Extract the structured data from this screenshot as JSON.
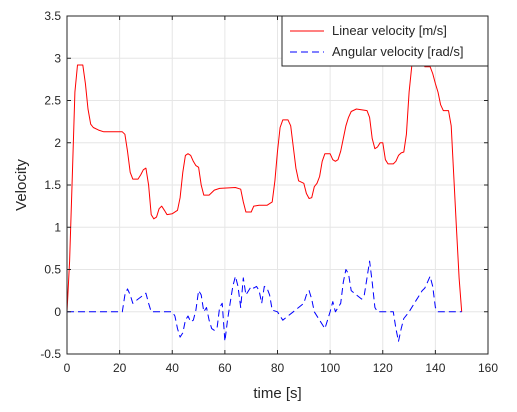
{
  "chart_data": {
    "type": "line",
    "xlabel": "time [s]",
    "ylabel": "Velocity",
    "xlim": [
      0,
      160
    ],
    "ylim": [
      -0.5,
      3.5
    ],
    "x_ticks": [
      "0",
      "20",
      "40",
      "60",
      "80",
      "100",
      "120",
      "140",
      "160"
    ],
    "y_ticks": [
      "-0.5",
      "0",
      "0.5",
      "1",
      "1.5",
      "2",
      "2.5",
      "3",
      "3.5"
    ],
    "grid": true,
    "legend_position": "top-right",
    "series": [
      {
        "name": "Linear velocity [m/s]",
        "color": "#ff0000",
        "line_style": "solid",
        "points": [
          [
            0,
            0
          ],
          [
            1,
            0.6
          ],
          [
            2,
            1.6
          ],
          [
            3,
            2.6
          ],
          [
            4,
            2.92
          ],
          [
            6,
            2.92
          ],
          [
            7,
            2.7
          ],
          [
            8,
            2.4
          ],
          [
            9,
            2.22
          ],
          [
            10,
            2.18
          ],
          [
            12,
            2.15
          ],
          [
            14,
            2.13
          ],
          [
            16,
            2.13
          ],
          [
            18,
            2.13
          ],
          [
            21,
            2.13
          ],
          [
            22,
            2.1
          ],
          [
            23,
            1.9
          ],
          [
            24,
            1.65
          ],
          [
            25,
            1.57
          ],
          [
            27,
            1.57
          ],
          [
            28,
            1.62
          ],
          [
            29,
            1.68
          ],
          [
            30,
            1.7
          ],
          [
            31,
            1.5
          ],
          [
            32,
            1.15
          ],
          [
            33,
            1.1
          ],
          [
            34,
            1.12
          ],
          [
            35,
            1.22
          ],
          [
            36,
            1.25
          ],
          [
            37,
            1.2
          ],
          [
            38,
            1.15
          ],
          [
            40,
            1.16
          ],
          [
            42,
            1.2
          ],
          [
            43,
            1.35
          ],
          [
            44,
            1.65
          ],
          [
            45,
            1.85
          ],
          [
            46,
            1.87
          ],
          [
            47,
            1.85
          ],
          [
            48,
            1.78
          ],
          [
            49,
            1.73
          ],
          [
            50,
            1.71
          ],
          [
            51,
            1.5
          ],
          [
            52,
            1.38
          ],
          [
            54,
            1.38
          ],
          [
            56,
            1.44
          ],
          [
            58,
            1.46
          ],
          [
            64,
            1.47
          ],
          [
            66,
            1.45
          ],
          [
            67,
            1.3
          ],
          [
            68,
            1.18
          ],
          [
            70,
            1.18
          ],
          [
            71,
            1.25
          ],
          [
            73,
            1.26
          ],
          [
            76,
            1.26
          ],
          [
            78,
            1.3
          ],
          [
            79,
            1.55
          ],
          [
            80,
            1.9
          ],
          [
            81,
            2.18
          ],
          [
            82,
            2.27
          ],
          [
            84,
            2.27
          ],
          [
            85,
            2.2
          ],
          [
            86,
            1.95
          ],
          [
            87,
            1.7
          ],
          [
            88,
            1.55
          ],
          [
            90,
            1.52
          ],
          [
            91,
            1.4
          ],
          [
            92,
            1.34
          ],
          [
            93,
            1.35
          ],
          [
            94,
            1.48
          ],
          [
            95,
            1.52
          ],
          [
            96,
            1.6
          ],
          [
            97,
            1.78
          ],
          [
            98,
            1.87
          ],
          [
            100,
            1.87
          ],
          [
            101,
            1.8
          ],
          [
            102,
            1.78
          ],
          [
            103,
            1.8
          ],
          [
            104,
            1.9
          ],
          [
            105,
            2.05
          ],
          [
            106,
            2.2
          ],
          [
            107,
            2.3
          ],
          [
            108,
            2.37
          ],
          [
            110,
            2.4
          ],
          [
            114,
            2.38
          ],
          [
            115,
            2.3
          ],
          [
            116,
            2.05
          ],
          [
            117,
            1.93
          ],
          [
            118,
            1.95
          ],
          [
            119,
            2.0
          ],
          [
            120,
            2.0
          ],
          [
            121,
            1.8
          ],
          [
            122,
            1.75
          ],
          [
            124,
            1.75
          ],
          [
            125,
            1.78
          ],
          [
            126,
            1.85
          ],
          [
            127,
            1.88
          ],
          [
            128,
            1.89
          ],
          [
            129,
            2.1
          ],
          [
            130,
            2.6
          ],
          [
            131,
            2.9
          ],
          [
            132,
            3.15
          ],
          [
            133,
            3.18
          ],
          [
            134,
            3.1
          ],
          [
            135,
            3.02
          ],
          [
            136,
            2.9
          ],
          [
            137,
            2.9
          ],
          [
            138,
            2.9
          ],
          [
            139,
            2.82
          ],
          [
            140,
            2.7
          ],
          [
            141,
            2.6
          ],
          [
            142,
            2.45
          ],
          [
            143,
            2.38
          ],
          [
            145,
            2.38
          ],
          [
            146,
            2.2
          ],
          [
            147,
            1.6
          ],
          [
            148,
            1.0
          ],
          [
            149,
            0.4
          ],
          [
            150,
            0.0
          ]
        ]
      },
      {
        "name": "Angular velocity [rad/s]",
        "color": "#0000ff",
        "line_style": "dashed",
        "points": [
          [
            0,
            0
          ],
          [
            5,
            0
          ],
          [
            10,
            0
          ],
          [
            15,
            0
          ],
          [
            21,
            0
          ],
          [
            22,
            0.2
          ],
          [
            23,
            0.27
          ],
          [
            24,
            0.2
          ],
          [
            25,
            0.1
          ],
          [
            27,
            0.15
          ],
          [
            30,
            0.22
          ],
          [
            31,
            0.1
          ],
          [
            32,
            0
          ],
          [
            35,
            0
          ],
          [
            40,
            0
          ],
          [
            41,
            -0.05
          ],
          [
            42,
            -0.2
          ],
          [
            43,
            -0.3
          ],
          [
            44,
            -0.25
          ],
          [
            45,
            -0.1
          ],
          [
            46,
            -0.05
          ],
          [
            47,
            -0.12
          ],
          [
            48,
            -0.1
          ],
          [
            49,
            0.02
          ],
          [
            50,
            0.25
          ],
          [
            51,
            0.2
          ],
          [
            52,
            0
          ],
          [
            53,
            0.05
          ],
          [
            54,
            -0.1
          ],
          [
            55,
            -0.2
          ],
          [
            56,
            -0.22
          ],
          [
            57,
            -0.2
          ],
          [
            58,
            0.05
          ],
          [
            59,
            0.1
          ],
          [
            60,
            -0.35
          ],
          [
            61,
            -0.1
          ],
          [
            62,
            0.1
          ],
          [
            63,
            0.3
          ],
          [
            64,
            0.42
          ],
          [
            65,
            0.3
          ],
          [
            66,
            0.05
          ],
          [
            67,
            0.4
          ],
          [
            68,
            0.2
          ],
          [
            69,
            0.25
          ],
          [
            70,
            0.3
          ],
          [
            71,
            0.28
          ],
          [
            72,
            0.3
          ],
          [
            73,
            0.25
          ],
          [
            74,
            0.1
          ],
          [
            75,
            0.3
          ],
          [
            76,
            0.28
          ],
          [
            77,
            0.2
          ],
          [
            78,
            0.02
          ],
          [
            80,
            0
          ],
          [
            82,
            -0.1
          ],
          [
            84,
            -0.05
          ],
          [
            86,
            0
          ],
          [
            88,
            0.05
          ],
          [
            90,
            0.1
          ],
          [
            91,
            0.2
          ],
          [
            92,
            0.25
          ],
          [
            93,
            0.15
          ],
          [
            94,
            0
          ],
          [
            96,
            -0.1
          ],
          [
            98,
            -0.2
          ],
          [
            100,
            0
          ],
          [
            101,
            0.12
          ],
          [
            102,
            0
          ],
          [
            104,
            0.1
          ],
          [
            105,
            0.35
          ],
          [
            106,
            0.5
          ],
          [
            107,
            0.45
          ],
          [
            108,
            0.25
          ],
          [
            110,
            0.2
          ],
          [
            112,
            0.15
          ],
          [
            113,
            0.2
          ],
          [
            114,
            0.4
          ],
          [
            115,
            0.6
          ],
          [
            116,
            0.35
          ],
          [
            117,
            0.05
          ],
          [
            118,
            0
          ],
          [
            124,
            0
          ],
          [
            125,
            -0.2
          ],
          [
            126,
            -0.35
          ],
          [
            127,
            -0.2
          ],
          [
            128,
            -0.08
          ],
          [
            130,
            0
          ],
          [
            132,
            0.1
          ],
          [
            134,
            0.2
          ],
          [
            135,
            0.25
          ],
          [
            136,
            0.28
          ],
          [
            137,
            0.35
          ],
          [
            138,
            0.42
          ],
          [
            139,
            0.3
          ],
          [
            140,
            0.05
          ],
          [
            141,
            0
          ],
          [
            145,
            0
          ],
          [
            150,
            0
          ]
        ]
      }
    ]
  }
}
